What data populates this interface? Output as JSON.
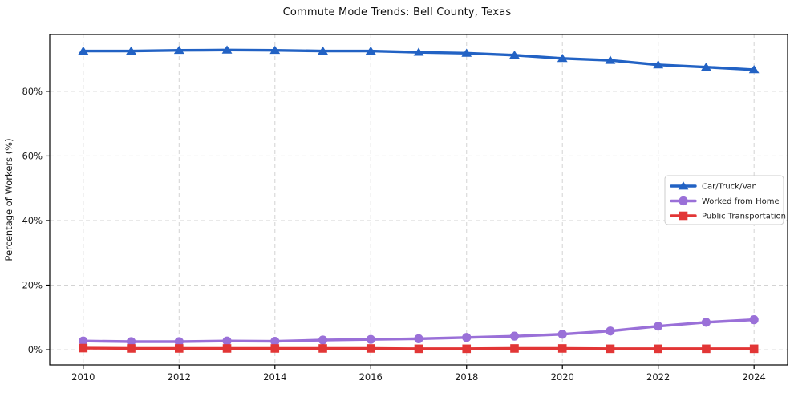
{
  "title": "Commute Mode Trends: Bell County, Texas",
  "chart_data": {
    "type": "line",
    "title": "Commute Mode Trends: Bell County, Texas",
    "xlabel": "",
    "ylabel": "Percentage of Workers (%)",
    "x": [
      2010,
      2011,
      2012,
      2013,
      2014,
      2015,
      2016,
      2017,
      2018,
      2019,
      2020,
      2021,
      2022,
      2023,
      2024
    ],
    "series": [
      {
        "name": "Car/Truck/Van",
        "color": "#2262c4",
        "marker": "triangle",
        "values": [
          92.5,
          92.5,
          92.7,
          92.8,
          92.7,
          92.5,
          92.5,
          92.1,
          91.8,
          91.2,
          90.2,
          89.6,
          88.2,
          87.5,
          86.7
        ]
      },
      {
        "name": "Worked from Home",
        "color": "#9a70d8",
        "marker": "circle",
        "values": [
          2.7,
          2.5,
          2.5,
          2.7,
          2.6,
          3.0,
          3.2,
          3.4,
          3.8,
          4.2,
          4.8,
          5.8,
          7.3,
          8.5,
          9.3
        ]
      },
      {
        "name": "Public Transportation",
        "color": "#e23636",
        "marker": "square",
        "values": [
          0.5,
          0.4,
          0.4,
          0.4,
          0.4,
          0.4,
          0.4,
          0.3,
          0.3,
          0.4,
          0.4,
          0.3,
          0.3,
          0.3,
          0.3
        ]
      }
    ],
    "xticks": [
      2010,
      2012,
      2014,
      2016,
      2018,
      2020,
      2022,
      2024
    ],
    "yticks": [
      0,
      20,
      40,
      60,
      80
    ],
    "ytick_suffix": "%",
    "xlim": [
      2009.3,
      2024.7
    ],
    "ylim": [
      -4.7,
      97.6
    ],
    "grid": true,
    "grid_color": "#cccccc",
    "grid_style": "dashed",
    "axis_color": "#000000",
    "legend_position": "center-right"
  }
}
